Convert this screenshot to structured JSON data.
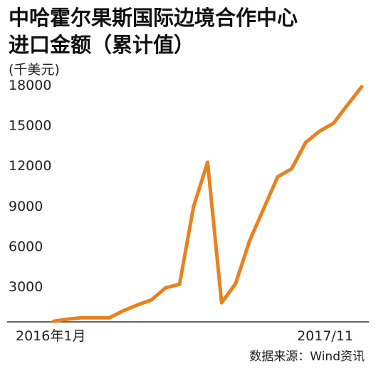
{
  "chart_data": {
    "type": "line",
    "title": "中哈霍尔果斯国际边境合作中心进口金额（累计值）",
    "y_label": "(千美元)",
    "source": "数据来源：Wind资讯",
    "categories": [
      "2016年1月",
      null,
      null,
      null,
      null,
      null,
      null,
      null,
      null,
      null,
      null,
      null,
      null,
      null,
      null,
      null,
      null,
      null,
      null,
      null,
      null,
      null,
      "2017/11"
    ],
    "series": [
      {
        "name": "进口金额",
        "color": "#e8821e",
        "values": [
          1360,
          1520,
          1620,
          1620,
          1620,
          2150,
          2580,
          2950,
          3850,
          4110,
          9890,
          13180,
          2740,
          4170,
          7350,
          9730,
          12100,
          12700,
          14660,
          15500,
          16100,
          17470,
          18800
        ]
      }
    ],
    "ylim": [
      1000,
      19000
    ],
    "yticks": [
      3000,
      6000,
      9000,
      12000,
      15000,
      18000
    ],
    "grid": false
  }
}
